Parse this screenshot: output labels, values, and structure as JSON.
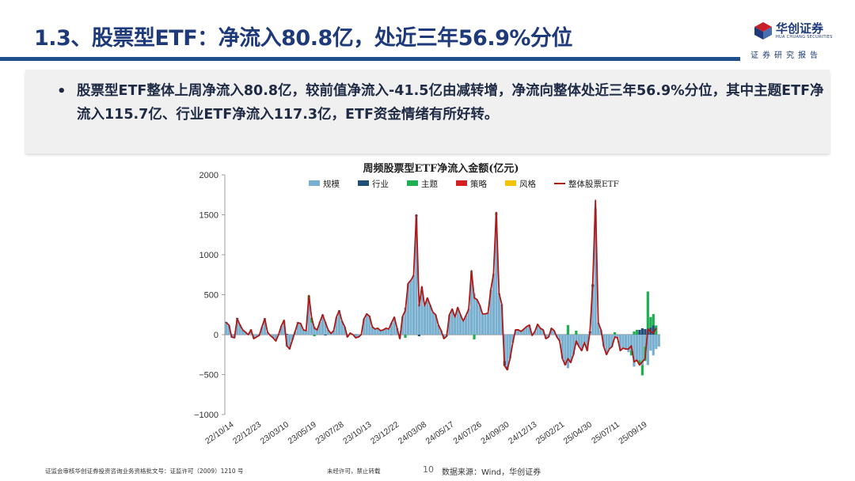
{
  "header": {
    "title": "1.3、股票型ETF：净流入80.8亿，处近三年56.9%分位",
    "logo_text": "华创证券",
    "logo_sub": "HUA CHUANG SECURITIES",
    "report_label": "证券研究报告"
  },
  "summary": {
    "bullet": "•",
    "text": "股票型ETF整体上周净流入80.8亿，较前值净流入-41.5亿由减转增，净流向整体处近三年56.9%分位，其中主题ETF净流入115.7亿、行业ETF净流入117.3亿，ETF资金情绪有所好转。"
  },
  "footer": {
    "license": "证监会审核华创证券投资咨询业务资格批文号：证监许可（2009）1210 号",
    "notice": "未经许可，禁止转载",
    "page": "10",
    "source": "数据来源：Wind，华创证券"
  },
  "colors": {
    "brand_blue": "#1e3a7a",
    "rule_blue": "#21508f",
    "scale": "#79b0cf",
    "industry": "#1f4e79",
    "theme": "#1eb050",
    "strategy": "#d42020",
    "style": "#f5c200",
    "total": "#b01818"
  },
  "chart_data": {
    "type": "bar",
    "stacked": true,
    "title": "周频股票型ETF净流入金额(亿元)",
    "xlabel": "",
    "ylabel": "",
    "ylim": [
      -1000,
      2000
    ],
    "yticks": [
      -1000,
      -500,
      0,
      500,
      1000,
      1500,
      2000
    ],
    "ytick_labels": [
      "−1000",
      "−500",
      "0",
      "500",
      "1000",
      "1500",
      "2000"
    ],
    "grid": false,
    "legend_position": "top",
    "x_tick_labels": [
      "22/10/14",
      "22/12/23",
      "23/03/10",
      "23/05/19",
      "23/07/28",
      "23/10/13",
      "23/12/22",
      "24/03/08",
      "24/05/17",
      "24/07/26",
      "24/09/30",
      "24/12/13",
      "25/02/21",
      "25/04/30",
      "25/07/11",
      "25/09/19"
    ],
    "x_tick_index": [
      0,
      10,
      20,
      30,
      40,
      50,
      60,
      70,
      80,
      90,
      100,
      110,
      120,
      130,
      140,
      150
    ],
    "series": [
      {
        "name": "规模",
        "type": "bar",
        "color": "#79b0cf",
        "values": [
          150,
          120,
          -30,
          -40,
          200,
          120,
          60,
          30,
          0,
          60,
          -50,
          -30,
          0,
          100,
          200,
          30,
          -10,
          -30,
          -80,
          -10,
          110,
          180,
          -150,
          -180,
          -60,
          40,
          150,
          140,
          60,
          50,
          440,
          150,
          100,
          60,
          160,
          250,
          160,
          60,
          10,
          50,
          220,
          300,
          170,
          100,
          -20,
          20,
          0,
          -40,
          -30,
          0,
          200,
          260,
          230,
          100,
          70,
          80,
          50,
          60,
          80,
          70,
          150,
          220,
          80,
          -50,
          230,
          330,
          640,
          680,
          740,
          1480,
          380,
          600,
          360,
          460,
          370,
          280,
          250,
          120,
          50,
          -50,
          -20,
          250,
          320,
          220,
          340,
          250,
          170,
          240,
          320,
          800,
          520,
          440,
          370,
          260,
          260,
          270,
          560,
          760,
          1500,
          520,
          380,
          -330,
          -400,
          -300,
          -100,
          60,
          60,
          40,
          70,
          100,
          120,
          -10,
          40,
          130,
          80,
          60,
          -50,
          -30,
          80,
          50,
          -30,
          -80,
          -300,
          -380,
          -420,
          -350,
          -250,
          -130,
          -150,
          -200,
          -100,
          -200,
          20,
          600,
          1580,
          150,
          60,
          -150,
          -250,
          -180,
          -150,
          -30,
          -40,
          -200,
          -170,
          -180,
          -220,
          -200,
          -400,
          -330,
          -320,
          -380,
          -150,
          -380,
          -200,
          -260,
          -180,
          -150
        ]
      },
      {
        "name": "行业",
        "type": "bar",
        "color": "#1f4e79",
        "values": [
          10,
          0,
          -5,
          5,
          10,
          5,
          0,
          5,
          0,
          5,
          0,
          0,
          -5,
          0,
          5,
          0,
          0,
          -5,
          0,
          5,
          0,
          0,
          10,
          0,
          -5,
          0,
          5,
          0,
          0,
          0,
          10,
          0,
          0,
          5,
          0,
          0,
          -10,
          0,
          5,
          0,
          0,
          5,
          0,
          0,
          -10,
          0,
          0,
          5,
          0,
          0,
          0,
          0,
          5,
          0,
          0,
          0,
          0,
          0,
          0,
          0,
          -5,
          0,
          0,
          0,
          0,
          5,
          0,
          0,
          0,
          20,
          -20,
          0,
          0,
          0,
          0,
          0,
          0,
          0,
          0,
          0,
          0,
          0,
          0,
          0,
          0,
          0,
          0,
          0,
          0,
          0,
          0,
          0,
          0,
          0,
          0,
          0,
          0,
          0,
          0,
          0,
          0,
          -60,
          -40,
          0,
          0,
          0,
          0,
          0,
          0,
          0,
          0,
          0,
          0,
          0,
          0,
          0,
          0,
          0,
          0,
          0,
          0,
          0,
          0,
          0,
          0,
          0,
          0,
          0,
          0,
          0,
          0,
          0,
          20,
          30,
          0,
          0,
          0,
          0,
          0,
          0,
          0,
          0,
          0,
          0,
          0,
          0,
          0,
          0,
          0,
          0,
          60,
          80,
          70,
          60,
          90,
          117.3
        ]
      },
      {
        "name": "主题",
        "type": "bar",
        "color": "#1eb050",
        "values": [
          0,
          0,
          0,
          0,
          0,
          0,
          0,
          0,
          0,
          0,
          0,
          0,
          0,
          0,
          0,
          0,
          0,
          0,
          0,
          0,
          0,
          0,
          0,
          0,
          0,
          0,
          0,
          0,
          0,
          0,
          40,
          60,
          -20,
          0,
          0,
          0,
          0,
          0,
          0,
          0,
          0,
          0,
          0,
          0,
          0,
          0,
          0,
          0,
          0,
          0,
          0,
          0,
          0,
          0,
          0,
          0,
          0,
          0,
          0,
          0,
          0,
          0,
          0,
          0,
          0,
          -40,
          0,
          0,
          0,
          0,
          0,
          0,
          0,
          0,
          0,
          0,
          0,
          0,
          0,
          0,
          0,
          0,
          0,
          0,
          0,
          0,
          0,
          0,
          0,
          0,
          -60,
          0,
          0,
          0,
          0,
          0,
          0,
          0,
          30,
          0,
          0,
          0,
          0,
          0,
          0,
          0,
          0,
          0,
          0,
          0,
          0,
          0,
          0,
          0,
          0,
          0,
          0,
          0,
          0,
          0,
          0,
          0,
          0,
          0,
          120,
          0,
          0,
          50,
          0,
          0,
          0,
          0,
          0,
          0,
          0,
          0,
          0,
          0,
          0,
          0,
          0,
          30,
          0,
          0,
          0,
          0,
          0,
          -60,
          40,
          60,
          -50,
          -130,
          -180,
          480,
          130,
          140,
          115.7
        ]
      },
      {
        "name": "策略",
        "type": "bar",
        "color": "#d42020",
        "values": [
          0,
          0,
          0,
          0,
          0,
          0,
          0,
          0,
          0,
          0,
          0,
          0,
          0,
          0,
          0,
          0,
          0,
          0,
          0,
          0,
          0,
          0,
          0,
          0,
          0,
          0,
          0,
          0,
          0,
          0,
          0,
          0,
          0,
          0,
          0,
          0,
          0,
          0,
          0,
          0,
          0,
          0,
          0,
          0,
          0,
          0,
          0,
          0,
          0,
          0,
          0,
          0,
          0,
          0,
          0,
          0,
          0,
          0,
          0,
          0,
          0,
          0,
          0,
          0,
          0,
          0,
          0,
          0,
          0,
          0,
          0,
          0,
          0,
          0,
          0,
          0,
          0,
          0,
          0,
          0,
          0,
          0,
          0,
          0,
          0,
          0,
          0,
          0,
          0,
          0,
          0,
          0,
          0,
          0,
          0,
          0,
          0,
          0,
          0,
          0,
          0,
          0,
          0,
          0,
          0,
          0,
          0,
          0,
          0,
          0,
          0,
          0,
          0,
          0,
          0,
          0,
          0,
          0,
          0,
          0,
          0,
          0,
          0,
          0,
          0,
          0,
          0,
          0,
          0,
          0,
          0,
          0,
          0,
          0,
          0,
          0,
          0,
          0,
          0,
          0,
          0,
          0,
          0,
          0,
          0,
          0,
          0,
          0,
          0,
          0,
          0,
          0,
          0,
          0,
          0
        ]
      },
      {
        "name": "风格",
        "type": "bar",
        "color": "#f5c200",
        "values": [
          0,
          0,
          0,
          0,
          0,
          0,
          0,
          0,
          0,
          0,
          0,
          0,
          0,
          0,
          0,
          0,
          0,
          0,
          0,
          0,
          0,
          0,
          0,
          0,
          0,
          0,
          0,
          0,
          0,
          0,
          0,
          0,
          0,
          0,
          0,
          0,
          0,
          0,
          0,
          0,
          0,
          0,
          0,
          0,
          0,
          0,
          0,
          0,
          0,
          0,
          0,
          0,
          0,
          0,
          0,
          0,
          0,
          0,
          0,
          0,
          0,
          0,
          0,
          0,
          0,
          0,
          0,
          0,
          0,
          0,
          0,
          0,
          0,
          0,
          0,
          0,
          0,
          0,
          0,
          0,
          0,
          0,
          0,
          0,
          0,
          0,
          0,
          0,
          0,
          0,
          0,
          0,
          0,
          0,
          0,
          0,
          0,
          0,
          0,
          0,
          0,
          0,
          0,
          0,
          0,
          0,
          0,
          0,
          0,
          0,
          0,
          0,
          0,
          0,
          0,
          0,
          0,
          0,
          0,
          0,
          0,
          0,
          0,
          0,
          0,
          0,
          0,
          0,
          0,
          0,
          0,
          0,
          0,
          0,
          0,
          0,
          0,
          0,
          0,
          0,
          0,
          0,
          0,
          0,
          0,
          0,
          0,
          0,
          0,
          0,
          0,
          0,
          0,
          0,
          0
        ]
      },
      {
        "name": "整体股票ETF",
        "type": "line",
        "color": "#b01818",
        "values": [
          150,
          120,
          -30,
          -40,
          200,
          120,
          60,
          30,
          0,
          60,
          -50,
          -30,
          -10,
          100,
          200,
          30,
          -10,
          -40,
          -80,
          0,
          110,
          180,
          -140,
          -180,
          -70,
          40,
          150,
          140,
          60,
          50,
          490,
          210,
          80,
          60,
          160,
          250,
          150,
          60,
          15,
          50,
          220,
          300,
          170,
          100,
          -30,
          20,
          0,
          -40,
          -30,
          0,
          200,
          260,
          230,
          100,
          70,
          80,
          50,
          60,
          80,
          70,
          150,
          220,
          80,
          -50,
          230,
          300,
          640,
          680,
          740,
          1500,
          360,
          600,
          360,
          460,
          370,
          280,
          250,
          120,
          50,
          -50,
          -20,
          250,
          320,
          220,
          340,
          250,
          170,
          240,
          320,
          800,
          460,
          440,
          370,
          260,
          260,
          270,
          560,
          760,
          1530,
          520,
          380,
          -390,
          -440,
          -300,
          -100,
          60,
          60,
          40,
          70,
          100,
          120,
          -10,
          40,
          130,
          80,
          60,
          -50,
          -30,
          80,
          50,
          -30,
          -80,
          -300,
          -380,
          -300,
          -350,
          -250,
          -80,
          -150,
          -200,
          -100,
          -200,
          40,
          630,
          1680,
          150,
          60,
          -150,
          -250,
          -180,
          -150,
          -30,
          -40,
          -200,
          -170,
          -180,
          -180,
          -140,
          -340,
          -320,
          -380,
          -340,
          -300,
          70,
          40,
          20,
          80.8
        ]
      }
    ]
  }
}
